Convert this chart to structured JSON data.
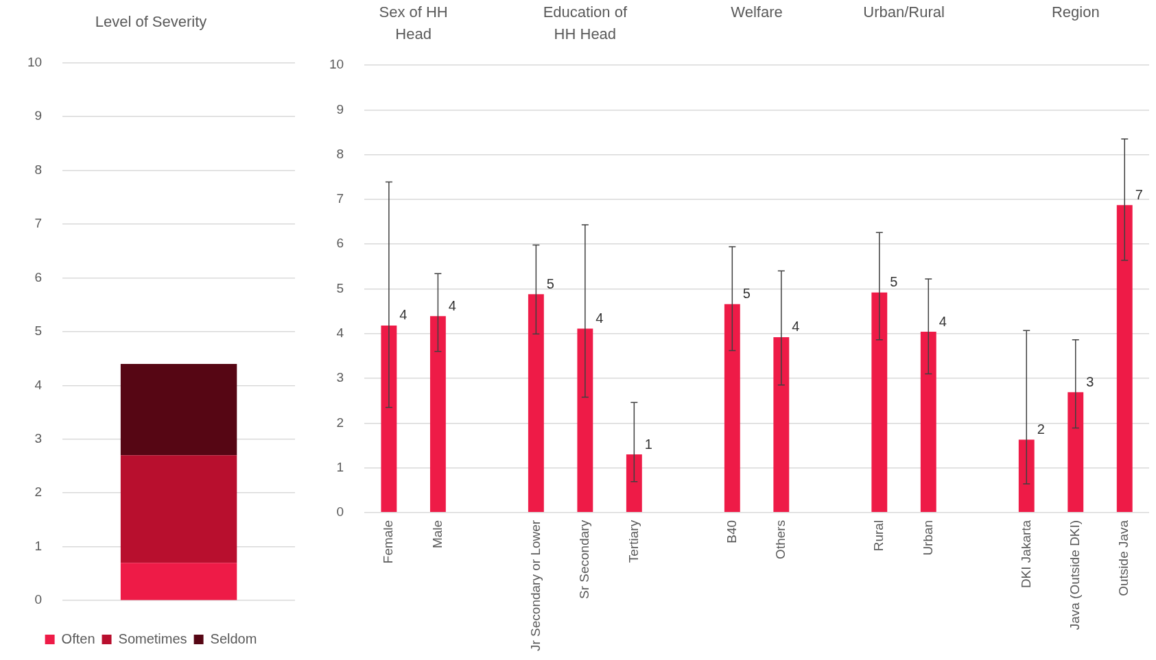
{
  "chart_data": [
    {
      "type": "bar",
      "title": "Level of Severity",
      "categories": [
        null
      ],
      "stacked": true,
      "series": [
        {
          "name": "Often",
          "color": "#ee1b47",
          "values": [
            0.7
          ]
        },
        {
          "name": "Sometimes",
          "color": "#b80f2e",
          "values": [
            2.0
          ]
        },
        {
          "name": "Seldom",
          "color": "#560614",
          "values": [
            1.7
          ]
        }
      ],
      "ylim": [
        0,
        10
      ],
      "yticks": [
        0,
        1,
        2,
        3,
        4,
        5,
        6,
        7,
        8,
        9,
        10
      ],
      "grid": "y",
      "legend": "bottom"
    },
    {
      "type": "bar",
      "categories": [
        "Female",
        "Male",
        null,
        "Jr Secondary or Lower",
        "Sr Secondary",
        "Tertiary",
        null,
        "B40",
        "Others",
        null,
        "Rural",
        "Urban",
        null,
        "DKI Jakarta",
        "Java (Outside DKI)",
        "Outside Java"
      ],
      "values": [
        4.18,
        4.39,
        null,
        4.88,
        4.11,
        1.3,
        null,
        4.66,
        3.92,
        null,
        4.92,
        4.04,
        null,
        1.63,
        2.69,
        6.87
      ],
      "errors": [
        [
          2.35,
          7.39
        ],
        [
          3.6,
          5.34
        ],
        null,
        [
          3.99,
          5.98
        ],
        [
          2.58,
          6.43
        ],
        [
          0.69,
          2.46
        ],
        null,
        [
          3.62,
          5.94
        ],
        [
          2.85,
          5.4
        ],
        null,
        [
          3.86,
          6.26
        ],
        [
          3.1,
          5.22
        ],
        null,
        [
          0.64,
          4.07
        ],
        [
          1.89,
          3.86
        ],
        [
          5.64,
          8.35
        ]
      ],
      "value_labels": [
        "4",
        "4",
        null,
        "5",
        "4",
        "1",
        null,
        "5",
        "4",
        null,
        "5",
        "4",
        null,
        "2",
        "3",
        "7"
      ],
      "color": "#ee1b47",
      "annotations": [
        "Sex of HH Head",
        "Education of HH Head",
        "Welfare",
        "Urban/Rural",
        "Region"
      ],
      "ylim": [
        0,
        10
      ],
      "yticks": [
        0,
        1,
        2,
        3,
        4,
        5,
        6,
        7,
        8,
        9,
        10
      ],
      "grid": "y",
      "legend": false
    }
  ]
}
